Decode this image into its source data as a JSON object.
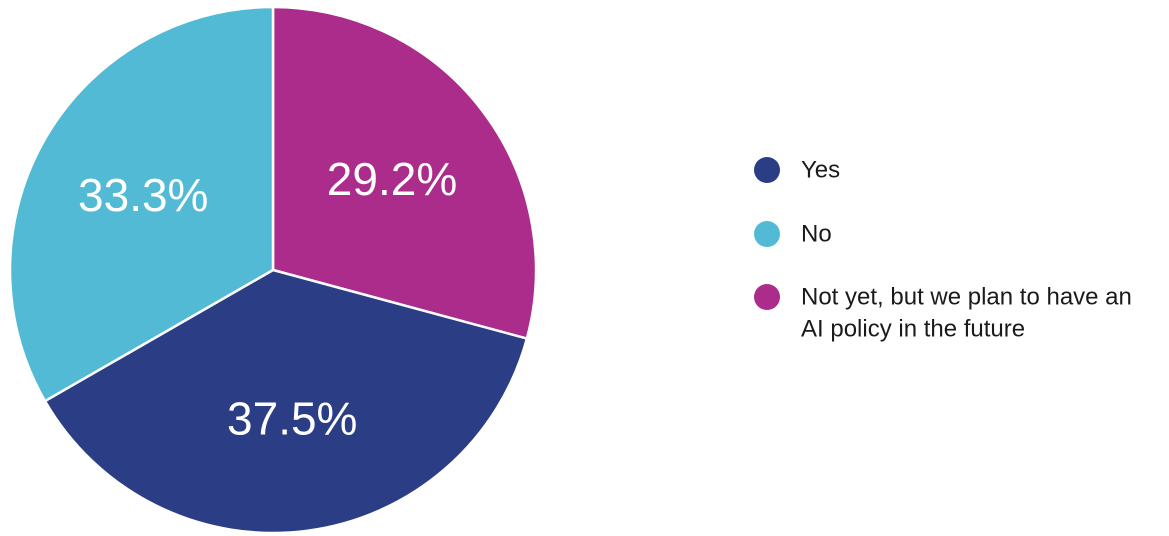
{
  "chart_data": {
    "type": "pie",
    "slices": [
      {
        "label": "Yes",
        "value": 37.5,
        "display": "37.5%",
        "color": "#2b3d84"
      },
      {
        "label": "No",
        "value": 33.3,
        "display": "33.3%",
        "color": "#52bad4"
      },
      {
        "label": "Not yet, but we plan to have an AI policy in the future",
        "value": 29.2,
        "display": "29.2%",
        "color": "#ab2c8a"
      }
    ],
    "legend": {
      "placement": "right",
      "entries": [
        {
          "lines": [
            "Yes"
          ],
          "color": "#2b3d84"
        },
        {
          "lines": [
            "No"
          ],
          "color": "#52bad4"
        },
        {
          "lines": [
            "Not yet, but we plan to have an",
            "AI policy in the future"
          ],
          "color": "#ab2c8a"
        }
      ]
    },
    "title": "",
    "start": "12 o'clock",
    "direction": "clockwise",
    "slice_order": [
      "Not yet, but we plan to have an AI policy in the future",
      "Yes",
      "No"
    ]
  }
}
